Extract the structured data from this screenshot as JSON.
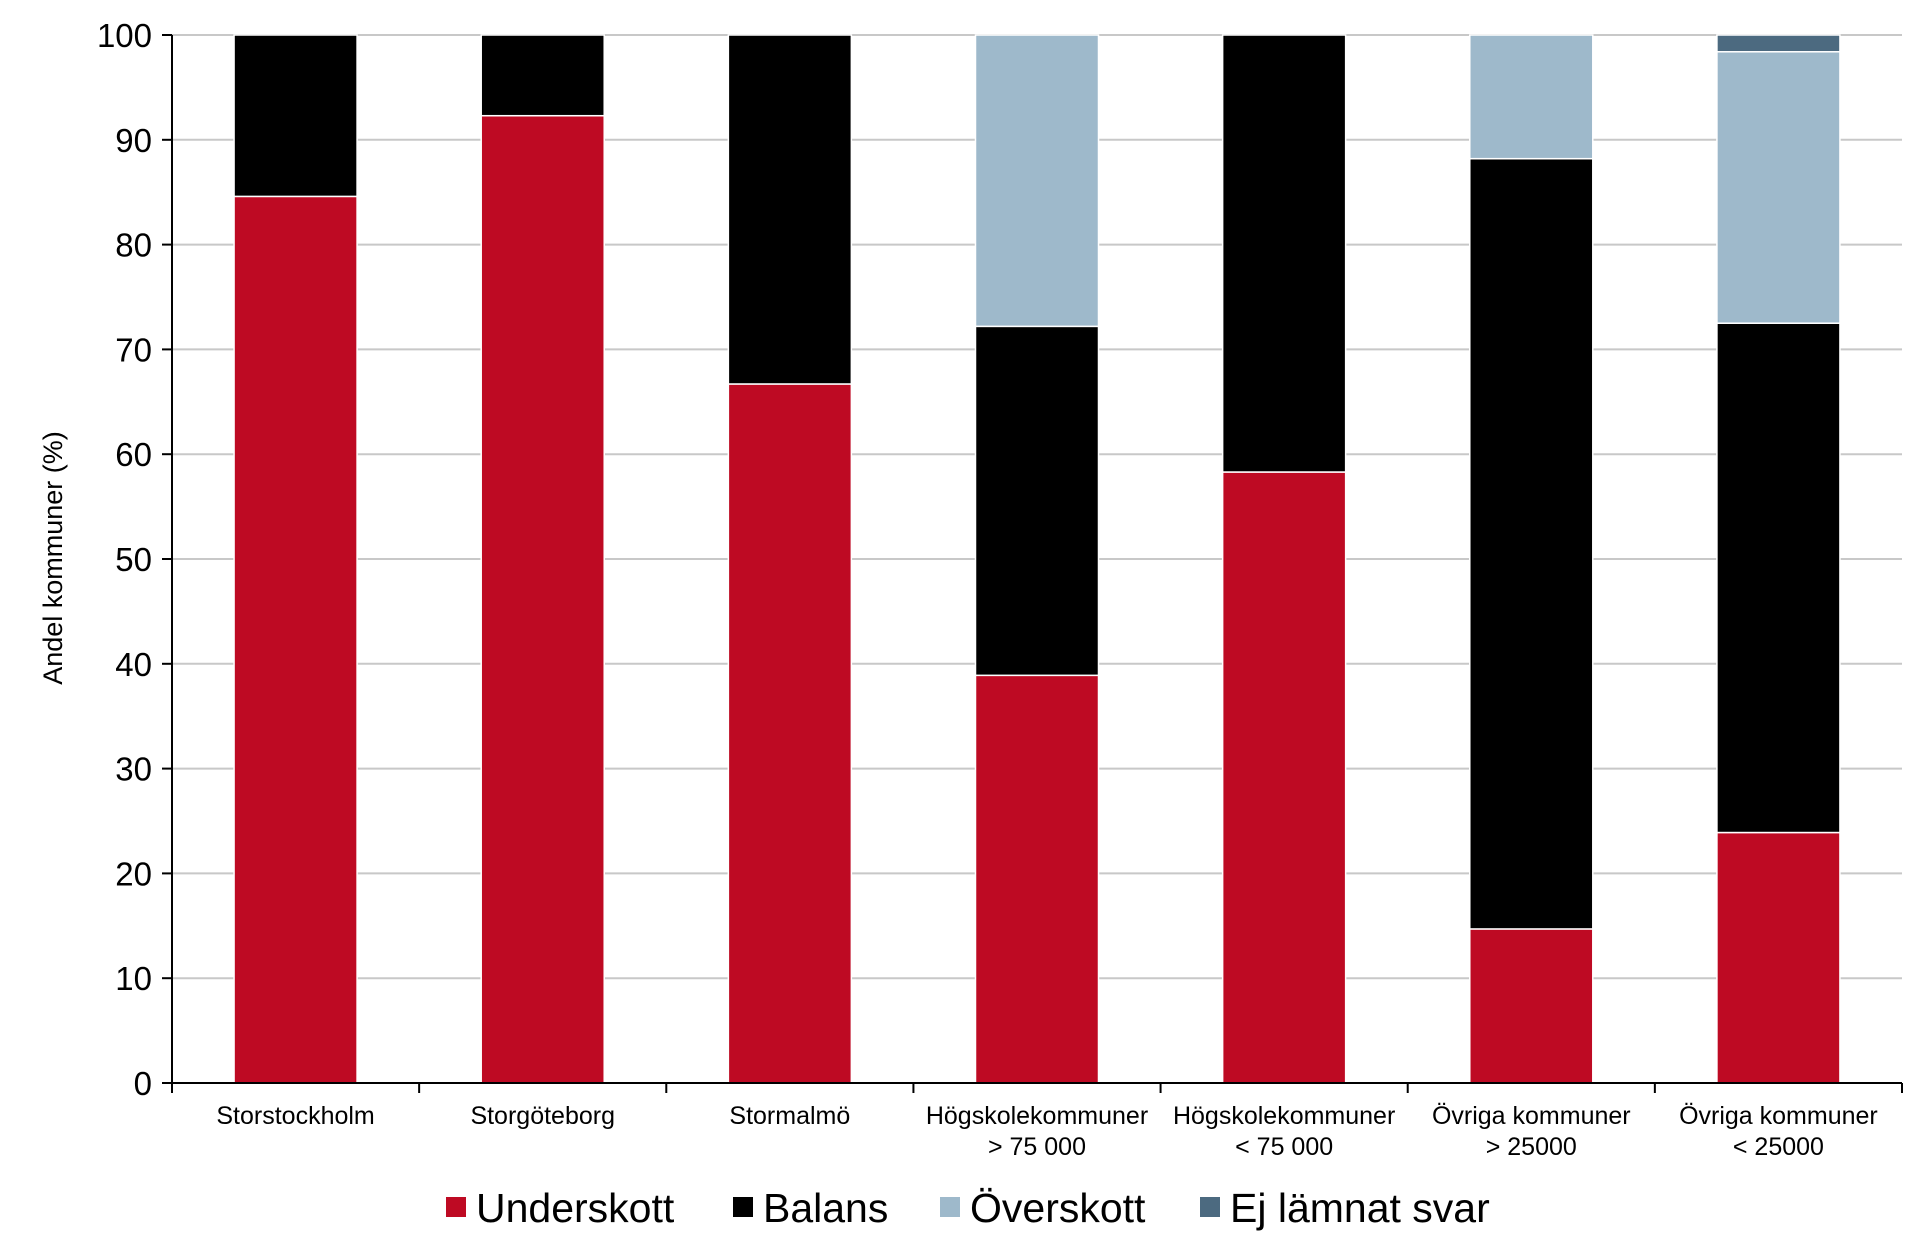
{
  "chart_data": {
    "type": "bar",
    "stacked": true,
    "title": "",
    "xlabel": "",
    "ylabel": "Andel kommuner (%)",
    "ylim": [
      0,
      100
    ],
    "yticks": [
      "0",
      "10",
      "20",
      "30",
      "40",
      "50",
      "60",
      "70",
      "80",
      "90",
      "100"
    ],
    "grid": true,
    "legend_position": "bottom",
    "categories": [
      [
        "Storstockholm"
      ],
      [
        "Storgöteborg"
      ],
      [
        "Stormalmö"
      ],
      [
        "Högskolekommuner",
        "> 75 000"
      ],
      [
        "Högskolekommuner",
        "< 75 000"
      ],
      [
        "Övriga kommuner",
        "> 25000"
      ],
      [
        "Övriga kommuner",
        "< 25000"
      ]
    ],
    "series": [
      {
        "name": "Underskott",
        "color": "#be0a23",
        "values": [
          84.6,
          92.3,
          66.7,
          38.9,
          58.3,
          14.7,
          23.9
        ]
      },
      {
        "name": "Balans",
        "color": "#000000",
        "values": [
          15.4,
          7.7,
          33.3,
          33.3,
          41.7,
          73.5,
          48.6
        ]
      },
      {
        "name": "Överskott",
        "color": "#9eb9cb",
        "values": [
          0,
          0,
          0,
          27.8,
          0,
          11.8,
          25.9
        ]
      },
      {
        "name": "Ej lämnat svar",
        "color": "#4c6a80",
        "values": [
          0,
          0,
          0,
          0,
          0,
          0,
          1.6
        ]
      }
    ]
  }
}
